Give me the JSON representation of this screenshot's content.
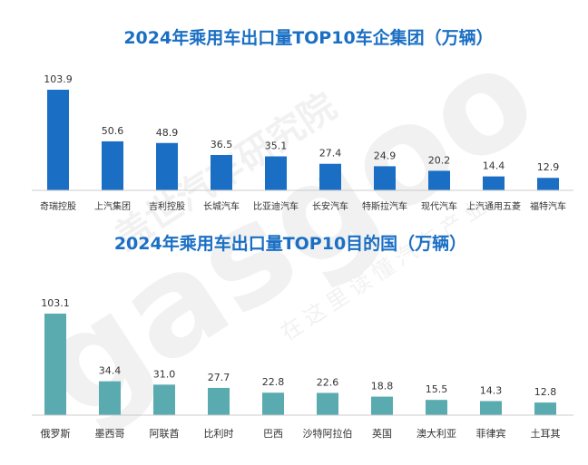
{
  "chart_data": [
    {
      "type": "bar",
      "title": "2024年乘用车出口量TOP10车企集团（万辆）",
      "categories": [
        "奇瑞控股",
        "上汽集团",
        "吉利控股",
        "长城汽车",
        "比亚迪汽车",
        "长安汽车",
        "特斯拉汽车",
        "现代汽车",
        "上汽通用五菱",
        "福特汽车"
      ],
      "values": [
        103.9,
        50.6,
        48.9,
        36.5,
        35.1,
        27.4,
        24.9,
        20.2,
        14.4,
        12.9
      ],
      "value_labels": [
        "103.9",
        "50.6",
        "48.9",
        "36.5",
        "35.1",
        "27.4",
        "24.9",
        "20.2",
        "14.4",
        "12.9"
      ],
      "bar_color": "#1a6fc4",
      "title_color": "#1a6fc4",
      "ylim": [
        0,
        103.9
      ],
      "grid": false
    },
    {
      "type": "bar",
      "title": "2024年乘用车出口量TOP10目的国（万辆）",
      "categories": [
        "俄罗斯",
        "墨西哥",
        "阿联酋",
        "比利时",
        "巴西",
        "沙特阿拉伯",
        "英国",
        "澳大利亚",
        "菲律宾",
        "土耳其"
      ],
      "values": [
        103.1,
        34.4,
        31.0,
        27.7,
        22.8,
        22.6,
        18.8,
        15.5,
        14.3,
        12.8
      ],
      "value_labels": [
        "103.1",
        "34.4",
        "31.0",
        "27.7",
        "22.8",
        "22.6",
        "18.8",
        "15.5",
        "14.3",
        "12.8"
      ],
      "bar_color": "#5aabb0",
      "title_color": "#1a6fc4",
      "ylim": [
        0,
        103.1
      ],
      "grid": false
    }
  ],
  "watermark": {
    "brand": "盖世汽车研究院",
    "logo": "gasgoo",
    "slogan": "在这里读懂汽车产业"
  }
}
